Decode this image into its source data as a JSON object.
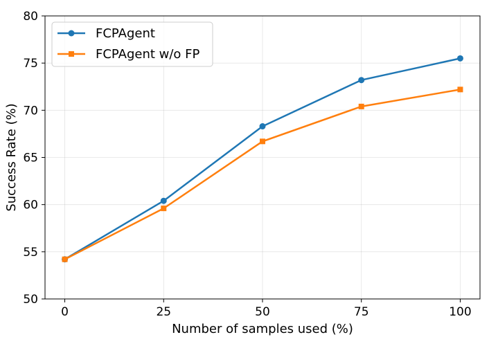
{
  "chart_data": {
    "type": "line",
    "xlabel": "Number of samples used (%)",
    "ylabel": "Success Rate (%)",
    "x": [
      0,
      25,
      50,
      75,
      100
    ],
    "xlim": [
      -5,
      105
    ],
    "ylim": [
      50,
      80
    ],
    "xticks": [
      "0",
      "25",
      "50",
      "75",
      "100"
    ],
    "yticks": [
      "50",
      "55",
      "60",
      "65",
      "70",
      "75",
      "80"
    ],
    "grid": true,
    "legend_position": "top-left",
    "series": [
      {
        "name": "FCPAgent",
        "values": [
          54.2,
          60.4,
          68.3,
          73.2,
          75.5
        ],
        "color": "#1f77b4",
        "marker": "circle"
      },
      {
        "name": "FCPAgent w/o FP",
        "values": [
          54.2,
          59.6,
          66.7,
          70.4,
          72.2
        ],
        "color": "#ff7f0e",
        "marker": "square"
      }
    ]
  }
}
